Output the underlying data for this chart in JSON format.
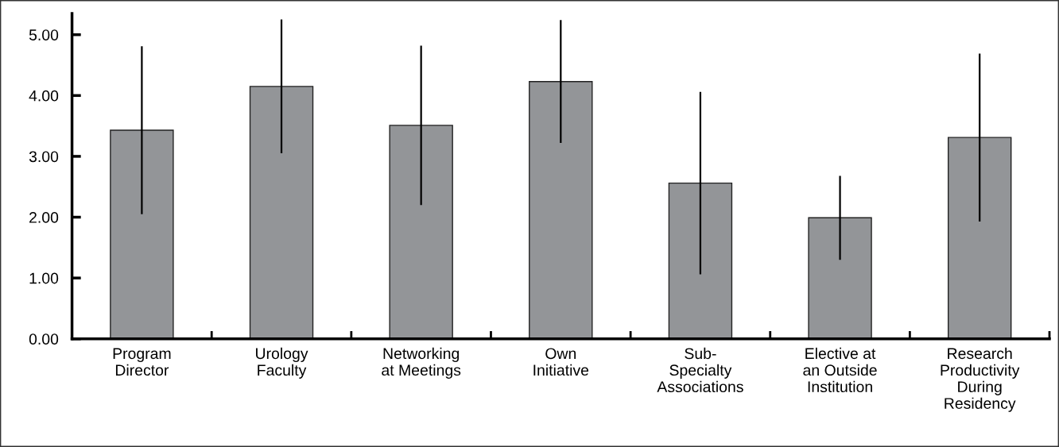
{
  "chart_data": {
    "type": "bar",
    "categories": [
      "Program\nDirector",
      "Urology\nFaculty",
      "Networking\nat Meetings",
      "Own\nInitiative",
      "Sub-\nSpecialty\nAssociations",
      "Elective at\nan Outside\nInstitution",
      "Research\nProductivity\nDuring\nResidency"
    ],
    "values": [
      3.43,
      4.15,
      3.51,
      4.23,
      2.56,
      1.99,
      3.31
    ],
    "errors": [
      1.38,
      1.1,
      1.31,
      1.01,
      1.5,
      0.69,
      1.38
    ],
    "color": "#939598",
    "ylim": [
      0,
      5.35
    ],
    "yticks": [
      {
        "value": 0,
        "label": "0.00"
      },
      {
        "value": 1,
        "label": "1.00"
      },
      {
        "value": 2,
        "label": "2.00"
      },
      {
        "value": 3,
        "label": "3.00"
      },
      {
        "value": 4,
        "label": "4.00"
      },
      {
        "value": 5,
        "label": "5.00"
      }
    ],
    "grid": false
  }
}
